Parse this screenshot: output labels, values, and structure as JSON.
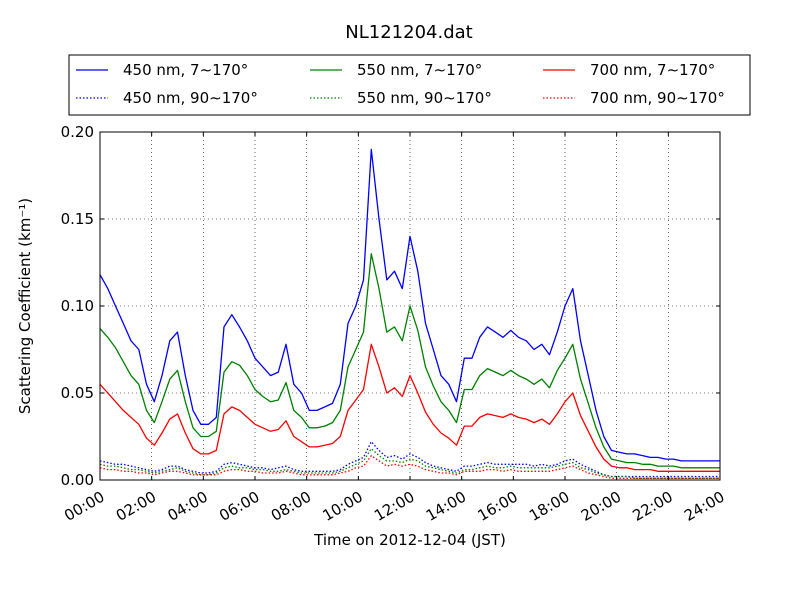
{
  "chart_data": {
    "type": "line",
    "title": "NL121204.dat",
    "xlabel": "Time on 2012-12-04 (JST)",
    "ylabel": "Scattering Coefficient (km⁻¹)",
    "xlim": [
      0,
      24
    ],
    "ylim": [
      0,
      0.2
    ],
    "x_ticks": [
      0,
      2,
      4,
      6,
      8,
      10,
      12,
      14,
      16,
      18,
      20,
      22,
      24
    ],
    "x_tick_labels": [
      "00:00",
      "02:00",
      "04:00",
      "06:00",
      "08:00",
      "10:00",
      "12:00",
      "14:00",
      "16:00",
      "18:00",
      "20:00",
      "22:00",
      "24:00"
    ],
    "y_ticks": [
      0,
      0.05,
      0.1,
      0.15,
      0.2
    ],
    "y_tick_labels": [
      "0.00",
      "0.05",
      "0.10",
      "0.15",
      "0.20"
    ],
    "grid": true,
    "legend_position": "top (above plot)",
    "x": [
      0.0,
      0.3,
      0.6,
      0.9,
      1.2,
      1.5,
      1.8,
      2.1,
      2.4,
      2.7,
      3.0,
      3.3,
      3.6,
      3.9,
      4.2,
      4.5,
      4.8,
      5.1,
      5.4,
      5.7,
      6.0,
      6.3,
      6.6,
      6.9,
      7.2,
      7.5,
      7.8,
      8.1,
      8.4,
      8.7,
      9.0,
      9.3,
      9.6,
      9.9,
      10.2,
      10.5,
      10.8,
      11.1,
      11.4,
      11.7,
      12.0,
      12.3,
      12.6,
      12.9,
      13.2,
      13.5,
      13.8,
      14.1,
      14.4,
      14.7,
      15.0,
      15.3,
      15.6,
      15.9,
      16.2,
      16.5,
      16.8,
      17.1,
      17.4,
      17.7,
      18.0,
      18.3,
      18.6,
      18.9,
      19.2,
      19.5,
      19.8,
      20.1,
      20.4,
      20.7,
      21.0,
      21.3,
      21.6,
      21.9,
      22.2,
      22.5,
      22.8,
      23.1,
      23.4,
      23.7,
      24.0
    ],
    "series": [
      {
        "name": "450 nm, 7∼170°",
        "color": "#0000ff",
        "style": "solid",
        "values": [
          0.118,
          0.11,
          0.1,
          0.09,
          0.08,
          0.075,
          0.055,
          0.045,
          0.06,
          0.08,
          0.085,
          0.06,
          0.04,
          0.032,
          0.032,
          0.036,
          0.088,
          0.095,
          0.088,
          0.08,
          0.07,
          0.065,
          0.06,
          0.062,
          0.078,
          0.055,
          0.05,
          0.04,
          0.04,
          0.042,
          0.044,
          0.055,
          0.09,
          0.1,
          0.115,
          0.19,
          0.15,
          0.115,
          0.12,
          0.11,
          0.14,
          0.12,
          0.09,
          0.075,
          0.06,
          0.055,
          0.045,
          0.07,
          0.07,
          0.082,
          0.088,
          0.085,
          0.082,
          0.086,
          0.082,
          0.08,
          0.075,
          0.078,
          0.072,
          0.085,
          0.1,
          0.11,
          0.08,
          0.06,
          0.04,
          0.025,
          0.017,
          0.016,
          0.015,
          0.015,
          0.014,
          0.013,
          0.013,
          0.012,
          0.012,
          0.011,
          0.011,
          0.011,
          0.011,
          0.011,
          0.011
        ]
      },
      {
        "name": "550 nm, 7∼170°",
        "color": "#008000",
        "style": "solid",
        "values": [
          0.087,
          0.082,
          0.076,
          0.068,
          0.06,
          0.055,
          0.04,
          0.033,
          0.045,
          0.058,
          0.063,
          0.045,
          0.03,
          0.025,
          0.025,
          0.028,
          0.062,
          0.068,
          0.066,
          0.06,
          0.052,
          0.048,
          0.045,
          0.046,
          0.056,
          0.04,
          0.036,
          0.03,
          0.03,
          0.031,
          0.033,
          0.04,
          0.065,
          0.075,
          0.085,
          0.13,
          0.11,
          0.085,
          0.088,
          0.08,
          0.1,
          0.086,
          0.065,
          0.054,
          0.045,
          0.04,
          0.033,
          0.052,
          0.052,
          0.06,
          0.064,
          0.062,
          0.06,
          0.063,
          0.06,
          0.058,
          0.055,
          0.058,
          0.053,
          0.063,
          0.07,
          0.078,
          0.058,
          0.044,
          0.03,
          0.019,
          0.012,
          0.011,
          0.01,
          0.01,
          0.009,
          0.009,
          0.008,
          0.008,
          0.008,
          0.007,
          0.007,
          0.007,
          0.007,
          0.007,
          0.007
        ]
      },
      {
        "name": "700 nm, 7∼170°",
        "color": "#ff0000",
        "style": "solid",
        "values": [
          0.055,
          0.05,
          0.045,
          0.04,
          0.036,
          0.032,
          0.024,
          0.02,
          0.027,
          0.035,
          0.038,
          0.027,
          0.018,
          0.015,
          0.015,
          0.017,
          0.038,
          0.042,
          0.04,
          0.036,
          0.032,
          0.03,
          0.028,
          0.029,
          0.034,
          0.025,
          0.022,
          0.019,
          0.019,
          0.02,
          0.021,
          0.025,
          0.04,
          0.046,
          0.052,
          0.078,
          0.065,
          0.05,
          0.053,
          0.048,
          0.06,
          0.05,
          0.039,
          0.032,
          0.027,
          0.024,
          0.02,
          0.031,
          0.031,
          0.036,
          0.038,
          0.037,
          0.036,
          0.038,
          0.036,
          0.035,
          0.033,
          0.035,
          0.032,
          0.038,
          0.045,
          0.05,
          0.037,
          0.028,
          0.019,
          0.012,
          0.008,
          0.007,
          0.007,
          0.006,
          0.006,
          0.006,
          0.005,
          0.005,
          0.005,
          0.005,
          0.005,
          0.005,
          0.005,
          0.005,
          0.005
        ]
      },
      {
        "name": "450 nm, 90∼170°",
        "color": "#0000ff",
        "style": "dotted",
        "values": [
          0.011,
          0.01,
          0.009,
          0.009,
          0.008,
          0.007,
          0.006,
          0.005,
          0.006,
          0.008,
          0.008,
          0.006,
          0.005,
          0.004,
          0.004,
          0.005,
          0.009,
          0.01,
          0.009,
          0.008,
          0.007,
          0.007,
          0.006,
          0.007,
          0.008,
          0.006,
          0.005,
          0.005,
          0.005,
          0.005,
          0.005,
          0.006,
          0.009,
          0.011,
          0.013,
          0.022,
          0.017,
          0.013,
          0.014,
          0.012,
          0.015,
          0.013,
          0.01,
          0.008,
          0.007,
          0.006,
          0.005,
          0.008,
          0.008,
          0.009,
          0.01,
          0.009,
          0.009,
          0.009,
          0.009,
          0.009,
          0.008,
          0.009,
          0.008,
          0.009,
          0.011,
          0.012,
          0.009,
          0.007,
          0.005,
          0.003,
          0.002,
          0.002,
          0.002,
          0.002,
          0.002,
          0.002,
          0.002,
          0.002,
          0.002,
          0.002,
          0.002,
          0.002,
          0.002,
          0.002,
          0.002
        ]
      },
      {
        "name": "550 nm, 90∼170°",
        "color": "#008000",
        "style": "dotted",
        "values": [
          0.009,
          0.008,
          0.008,
          0.007,
          0.006,
          0.006,
          0.005,
          0.004,
          0.005,
          0.006,
          0.007,
          0.005,
          0.004,
          0.003,
          0.003,
          0.004,
          0.007,
          0.008,
          0.007,
          0.007,
          0.006,
          0.006,
          0.005,
          0.005,
          0.006,
          0.005,
          0.004,
          0.004,
          0.004,
          0.004,
          0.004,
          0.005,
          0.007,
          0.009,
          0.011,
          0.018,
          0.014,
          0.011,
          0.011,
          0.01,
          0.012,
          0.011,
          0.008,
          0.007,
          0.006,
          0.005,
          0.004,
          0.006,
          0.006,
          0.007,
          0.008,
          0.007,
          0.007,
          0.008,
          0.007,
          0.007,
          0.007,
          0.007,
          0.007,
          0.008,
          0.009,
          0.01,
          0.007,
          0.006,
          0.004,
          0.003,
          0.002,
          0.002,
          0.002,
          0.001,
          0.001,
          0.001,
          0.001,
          0.001,
          0.001,
          0.001,
          0.001,
          0.001,
          0.001,
          0.001,
          0.001
        ]
      },
      {
        "name": "700 nm, 90∼170°",
        "color": "#ff0000",
        "style": "dotted",
        "values": [
          0.007,
          0.006,
          0.006,
          0.005,
          0.005,
          0.004,
          0.004,
          0.003,
          0.004,
          0.005,
          0.005,
          0.004,
          0.003,
          0.003,
          0.003,
          0.003,
          0.005,
          0.006,
          0.006,
          0.005,
          0.005,
          0.004,
          0.004,
          0.004,
          0.005,
          0.004,
          0.003,
          0.003,
          0.003,
          0.003,
          0.003,
          0.004,
          0.005,
          0.007,
          0.008,
          0.014,
          0.011,
          0.008,
          0.009,
          0.008,
          0.009,
          0.008,
          0.006,
          0.005,
          0.004,
          0.004,
          0.003,
          0.005,
          0.005,
          0.005,
          0.006,
          0.006,
          0.005,
          0.006,
          0.005,
          0.005,
          0.005,
          0.005,
          0.005,
          0.006,
          0.007,
          0.008,
          0.006,
          0.004,
          0.003,
          0.002,
          0.001,
          0.001,
          0.001,
          0.001,
          0.001,
          0.001,
          0.001,
          0.001,
          0.001,
          0.001,
          0.001,
          0.001,
          0.001,
          0.001,
          0.001
        ]
      }
    ]
  }
}
